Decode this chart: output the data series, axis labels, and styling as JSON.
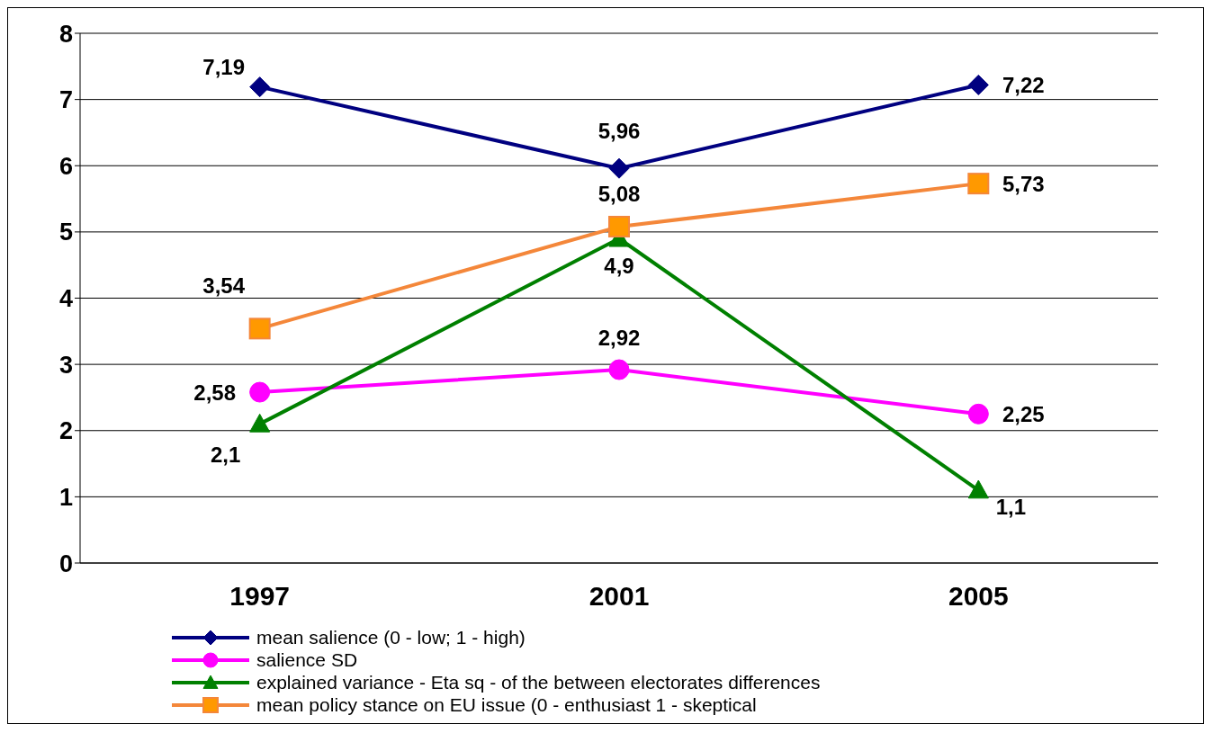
{
  "chart_data": {
    "type": "line",
    "categories": [
      "1997",
      "2001",
      "2005"
    ],
    "series": [
      {
        "name": "mean salience (0 - low; 1 - high)",
        "color": "#000080",
        "marker": "diamond",
        "values": [
          7.19,
          5.96,
          7.22
        ],
        "value_labels": [
          "7,19",
          "5,96",
          "7,22"
        ]
      },
      {
        "name": "salience SD",
        "color": "#ff00ff",
        "marker": "circle",
        "values": [
          2.58,
          2.92,
          2.25
        ],
        "value_labels": [
          "2,58",
          "2,92",
          "2,25"
        ]
      },
      {
        "name": "explained variance - Eta sq - of the between electorates differences",
        "color": "#008000",
        "marker": "triangle",
        "values": [
          2.1,
          4.9,
          1.1
        ],
        "value_labels": [
          "2,1",
          "4,9",
          "1,1"
        ]
      },
      {
        "name": "mean policy stance on EU issue (0 - enthusiast  1 - skeptical",
        "color": "#f4873a",
        "marker": "square",
        "values": [
          3.54,
          5.08,
          5.73
        ],
        "value_labels": [
          "3,54",
          "5,08",
          "5,73"
        ]
      }
    ],
    "ylim": [
      0,
      8
    ],
    "yticks": [
      0,
      1,
      2,
      3,
      4,
      5,
      6,
      7,
      8
    ],
    "grid": "y",
    "legend": "bottom"
  }
}
